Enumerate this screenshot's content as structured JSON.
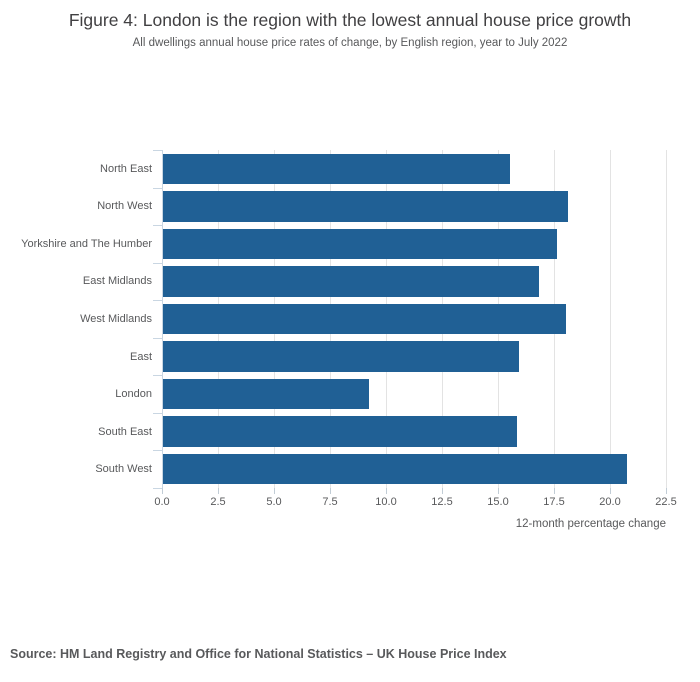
{
  "title": "Figure 4: London is the region with the lowest annual house price growth",
  "subtitle": "All dwellings annual house price rates of change, by English region, year to July 2022",
  "source": "Source: HM Land Registry and Office for National Statistics – UK House Price Index",
  "chart_data": {
    "type": "bar",
    "orientation": "horizontal",
    "title": "Figure 4: London is the region with the lowest annual house price growth",
    "subtitle": "All dwellings annual house price rates of change, by English region, year to July 2022",
    "categories": [
      "North East",
      "North West",
      "Yorkshire and The Humber",
      "East Midlands",
      "West Midlands",
      "East",
      "London",
      "South East",
      "South West"
    ],
    "values": [
      15.5,
      18.1,
      17.6,
      16.8,
      18.0,
      15.9,
      9.2,
      15.8,
      20.7
    ],
    "xlabel": "12-month percentage change",
    "ylabel": "",
    "xlim": [
      0,
      22.5
    ],
    "xticks": [
      0.0,
      2.5,
      5.0,
      7.5,
      10.0,
      12.5,
      15.0,
      17.5,
      20.0,
      22.5
    ],
    "tick_label_format": "one-decimal",
    "grid": "vertical-only",
    "legend": "none",
    "bar_color": "#206095",
    "gridline_color": "#e3e3e3",
    "axis_color": "#c9d6e2",
    "text_color": "#58595b"
  }
}
